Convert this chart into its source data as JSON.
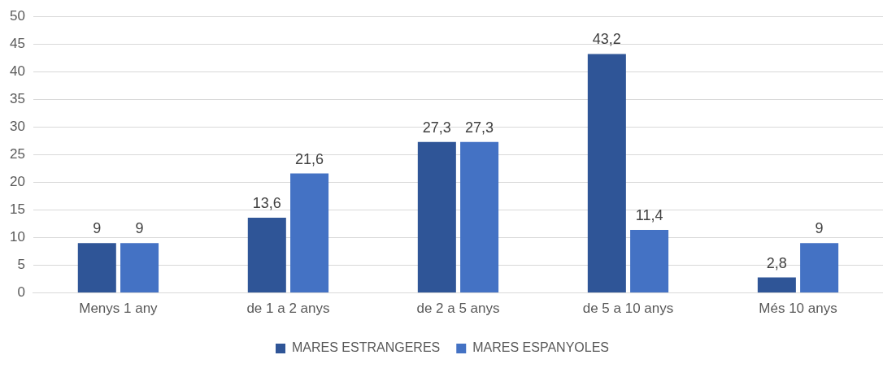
{
  "chart_data": {
    "type": "bar",
    "categories": [
      "Menys 1 any",
      "de 1 a 2 anys",
      "de 2 a 5 anys",
      "de 5 a 10 anys",
      "Més 10 anys"
    ],
    "series": [
      {
        "name": "MARES ESTRANGERES",
        "color": "#2f5597",
        "values": [
          9,
          13.6,
          27.3,
          43.2,
          2.8
        ],
        "value_labels": [
          "9",
          "13,6",
          "27,3",
          "43,2",
          "2,8"
        ]
      },
      {
        "name": "MARES ESPANYOLES",
        "color": "#4472c4",
        "values": [
          9,
          21.6,
          27.3,
          11.4,
          9
        ],
        "value_labels": [
          "9",
          "21,6",
          "27,3",
          "11,4",
          "9"
        ]
      }
    ],
    "ylim": [
      0,
      50
    ],
    "yticks": [
      0,
      5,
      10,
      15,
      20,
      25,
      30,
      35,
      40,
      45,
      50
    ],
    "grid": "y",
    "legend": "bottom"
  }
}
